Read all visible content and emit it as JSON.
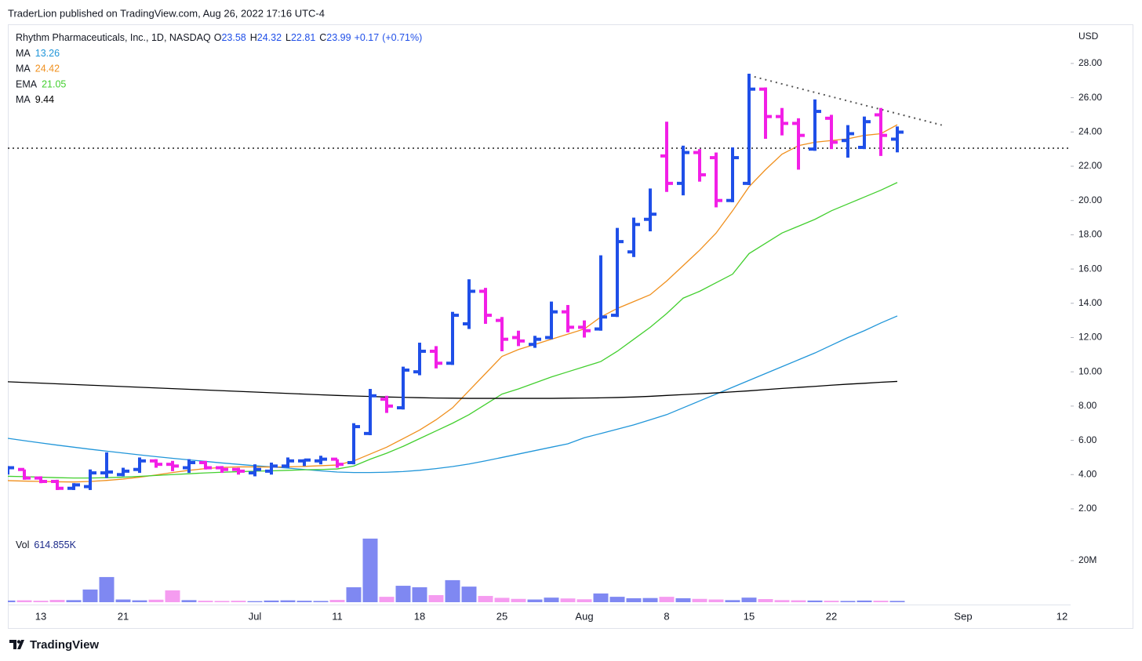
{
  "header": {
    "text": "TraderLion published on TradingView.com, Aug 26, 2022 17:16 UTC-4"
  },
  "footer": {
    "logo_text": "TradingView"
  },
  "chart_data": {
    "type": "ohlc",
    "symbol": "Rhythm Pharmaceuticals, Inc., 1D, NASDAQ",
    "ohlc_labels": [
      "O",
      "H",
      "L",
      "C"
    ],
    "change": "+0.17",
    "change_percent": "(+0.71%)",
    "currency": "USD",
    "categories": [
      null,
      null,
      "13",
      null,
      null,
      null,
      null,
      "21",
      null,
      null,
      null,
      null,
      null,
      null,
      null,
      "Jul",
      null,
      null,
      null,
      null,
      "11",
      null,
      null,
      null,
      null,
      "18",
      null,
      null,
      null,
      null,
      "25",
      null,
      null,
      null,
      null,
      "Aug",
      null,
      null,
      null,
      null,
      "8",
      null,
      null,
      null,
      null,
      "15",
      null,
      null,
      null,
      null,
      "22",
      null,
      null,
      null,
      null,
      null,
      null,
      null,
      "Sep",
      null,
      null,
      null,
      null,
      null,
      "12"
    ],
    "open": [
      4.2,
      4.3,
      3.8,
      3.6,
      3.2,
      3.3,
      4.1,
      4.0,
      4.3,
      4.8,
      4.6,
      4.4,
      4.7,
      4.4,
      4.3,
      4.1,
      4.2,
      4.5,
      4.8,
      4.8,
      4.9,
      4.7,
      6.4,
      8.4,
      7.9,
      10.0,
      11.2,
      10.5,
      12.8,
      14.7,
      13.0,
      12.0,
      11.6,
      12.0,
      13.5,
      12.6,
      12.5,
      13.3,
      17.0,
      18.9,
      22.6,
      21.0,
      22.8,
      22.5,
      20.0,
      21.0,
      26.5,
      24.9,
      24.5,
      23.0,
      24.8,
      23.5,
      23.1,
      25.0,
      23.58,
      null,
      null,
      null,
      null,
      null,
      null,
      null,
      null,
      null,
      null
    ],
    "high": [
      4.5,
      4.3,
      3.9,
      3.7,
      3.5,
      4.3,
      5.3,
      4.4,
      5.0,
      4.9,
      4.8,
      4.9,
      4.8,
      4.5,
      4.4,
      4.6,
      4.7,
      5.0,
      4.9,
      5.1,
      4.9,
      7.0,
      9.0,
      8.6,
      10.3,
      11.7,
      11.5,
      13.5,
      15.4,
      14.9,
      13.2,
      12.4,
      12.1,
      14.1,
      13.9,
      13.0,
      16.8,
      18.4,
      19.0,
      20.7,
      24.6,
      23.2,
      23.0,
      22.8,
      23.1,
      27.4,
      26.6,
      25.4,
      24.8,
      25.9,
      25.0,
      24.4,
      24.9,
      25.4,
      24.32,
      null,
      null,
      null,
      null,
      null,
      null,
      null,
      null,
      null,
      null
    ],
    "low": [
      4.0,
      3.7,
      3.5,
      3.1,
      3.1,
      3.1,
      3.8,
      3.9,
      4.1,
      4.4,
      4.2,
      4.1,
      4.3,
      4.1,
      4.0,
      3.9,
      4.0,
      4.4,
      4.5,
      4.6,
      4.4,
      4.6,
      6.3,
      7.6,
      7.8,
      9.8,
      10.2,
      10.4,
      12.5,
      12.8,
      11.2,
      11.5,
      11.4,
      11.9,
      12.3,
      12.0,
      12.4,
      13.2,
      16.7,
      18.2,
      20.5,
      20.3,
      21.1,
      19.6,
      19.9,
      20.9,
      23.6,
      23.8,
      21.8,
      22.9,
      23.0,
      22.5,
      23.0,
      22.6,
      22.81,
      null,
      null,
      null,
      null,
      null,
      null,
      null,
      null,
      null,
      null
    ],
    "close": [
      4.4,
      3.8,
      3.6,
      3.2,
      3.4,
      4.1,
      4.15,
      4.2,
      4.8,
      4.6,
      4.5,
      4.7,
      4.4,
      4.3,
      4.2,
      4.3,
      4.5,
      4.8,
      4.85,
      4.9,
      4.6,
      6.8,
      8.6,
      8.0,
      10.1,
      11.2,
      10.5,
      13.3,
      14.7,
      13.3,
      11.9,
      11.8,
      11.9,
      13.5,
      12.6,
      12.4,
      13.2,
      17.6,
      18.6,
      19.2,
      21.0,
      22.8,
      21.5,
      20.0,
      22.5,
      26.5,
      24.9,
      24.5,
      23.8,
      25.2,
      23.4,
      23.9,
      24.6,
      23.8,
      23.99,
      null,
      null,
      null,
      null,
      null,
      null,
      null,
      null,
      null,
      null
    ],
    "up_color": "#1f4fe8",
    "down_color": "#f21fe6",
    "ylim": [
      0.58,
      30.33
    ],
    "yticks": [
      {
        "value": 2,
        "label": "2.00"
      },
      {
        "value": 4,
        "label": "4.00"
      },
      {
        "value": 6,
        "label": "6.00"
      },
      {
        "value": 8,
        "label": "8.00"
      },
      {
        "value": 10,
        "label": "10.00"
      },
      {
        "value": 12,
        "label": "12.00"
      },
      {
        "value": 14,
        "label": "14.00"
      },
      {
        "value": 16,
        "label": "16.00"
      },
      {
        "value": 18,
        "label": "18.00"
      },
      {
        "value": 20,
        "label": "20.00"
      },
      {
        "value": 22,
        "label": "22.00"
      },
      {
        "value": 24,
        "label": "24.00"
      },
      {
        "value": 26,
        "label": "26.00"
      },
      {
        "value": 28,
        "label": "28.00"
      }
    ],
    "series": [
      {
        "name": "MA",
        "color": "#2196d9",
        "values": [
          6.12,
          5.98,
          5.85,
          5.72,
          5.6,
          5.48,
          5.37,
          5.26,
          5.15,
          5.05,
          4.95,
          4.86,
          4.77,
          4.68,
          4.6,
          4.52,
          4.45,
          4.38,
          4.3,
          4.22,
          4.15,
          4.12,
          4.12,
          4.14,
          4.18,
          4.25,
          4.35,
          4.47,
          4.62,
          4.8,
          5.0,
          5.2,
          5.4,
          5.6,
          5.8,
          6.15,
          6.4,
          6.65,
          6.9,
          7.2,
          7.5,
          7.9,
          8.3,
          8.7,
          9.1,
          9.5,
          9.9,
          10.3,
          10.7,
          11.1,
          11.55,
          12.0,
          12.4,
          12.85,
          13.26,
          null,
          null,
          null,
          null,
          null,
          null,
          null,
          null,
          null,
          null
        ]
      },
      {
        "name": "MA",
        "color": "#f0901e",
        "values": [
          3.65,
          3.62,
          3.6,
          3.58,
          3.57,
          3.6,
          3.66,
          3.74,
          3.85,
          3.98,
          4.12,
          4.25,
          4.35,
          4.42,
          4.45,
          4.45,
          4.44,
          4.45,
          4.48,
          4.52,
          4.56,
          4.8,
          5.2,
          5.6,
          6.1,
          6.6,
          7.2,
          7.9,
          8.9,
          9.9,
          10.9,
          11.3,
          11.6,
          11.9,
          12.2,
          12.5,
          13.2,
          13.7,
          14.1,
          14.5,
          15.3,
          16.2,
          17.1,
          18.1,
          19.4,
          20.8,
          21.8,
          22.7,
          23.2,
          23.4,
          23.5,
          23.6,
          23.8,
          23.9,
          24.42,
          null,
          null,
          null,
          null,
          null,
          null,
          null,
          null,
          null,
          null
        ]
      },
      {
        "name": "EMA",
        "color": "#43cf2f",
        "values": [
          3.9,
          3.88,
          3.85,
          3.82,
          3.8,
          3.8,
          3.82,
          3.85,
          3.9,
          3.95,
          4.0,
          4.05,
          4.1,
          4.14,
          4.17,
          4.2,
          4.22,
          4.25,
          4.28,
          4.3,
          4.33,
          4.5,
          4.9,
          5.25,
          5.65,
          6.1,
          6.55,
          7.0,
          7.5,
          8.1,
          8.7,
          9.0,
          9.35,
          9.7,
          10.0,
          10.3,
          10.6,
          11.2,
          11.9,
          12.6,
          13.4,
          14.3,
          14.7,
          15.2,
          15.7,
          16.9,
          17.5,
          18.1,
          18.5,
          18.9,
          19.4,
          19.8,
          20.2,
          20.6,
          21.05,
          null,
          null,
          null,
          null,
          null,
          null,
          null,
          null,
          null,
          null
        ]
      },
      {
        "name": "MA",
        "color": "#000000",
        "values": [
          9.42,
          9.38,
          9.34,
          9.3,
          9.26,
          9.22,
          9.18,
          9.14,
          9.1,
          9.06,
          9.02,
          8.98,
          8.94,
          8.9,
          8.86,
          8.82,
          8.78,
          8.74,
          8.7,
          8.66,
          8.62,
          8.59,
          8.56,
          8.53,
          8.51,
          8.49,
          8.47,
          8.46,
          8.45,
          8.45,
          8.45,
          8.45,
          8.45,
          8.45,
          8.46,
          8.47,
          8.48,
          8.5,
          8.53,
          8.57,
          8.62,
          8.67,
          8.72,
          8.77,
          8.83,
          8.89,
          8.96,
          9.03,
          9.09,
          9.15,
          9.22,
          9.28,
          9.33,
          9.39,
          9.44,
          null,
          null,
          null,
          null,
          null,
          null,
          null,
          null,
          null,
          null
        ]
      }
    ],
    "hline": 23.05,
    "trendline": {
      "x": [
        45,
        56.7
      ],
      "values": [
        27.3,
        24.4
      ]
    },
    "volume": {
      "name": "Vol",
      "legend_value": "614.855K",
      "values": [
        800000,
        900000,
        700000,
        1100000,
        1000000,
        6100000,
        12100000,
        1300000,
        900000,
        1200000,
        5700000,
        1000000,
        700000,
        600000,
        700000,
        500000,
        800000,
        900000,
        700000,
        600000,
        1100000,
        7200000,
        30600000,
        2600000,
        7900000,
        7200000,
        3400000,
        10600000,
        7500000,
        3000000,
        2100000,
        1600000,
        1300000,
        2200000,
        1800000,
        1400000,
        4200000,
        2600000,
        1900000,
        2000000,
        2600000,
        1900000,
        1600000,
        1300000,
        1000000,
        2200000,
        1500000,
        1000000,
        900000,
        800000,
        700000,
        600000,
        800000,
        700000,
        614855,
        null,
        null,
        null,
        null,
        null,
        null,
        null,
        null,
        null,
        null
      ],
      "up_color": "#7f88f2",
      "down_color": "#f59cf0",
      "ylim": [
        0,
        33200000
      ],
      "yticks": [
        {
          "value": 20000000,
          "label": "20M"
        }
      ]
    }
  }
}
